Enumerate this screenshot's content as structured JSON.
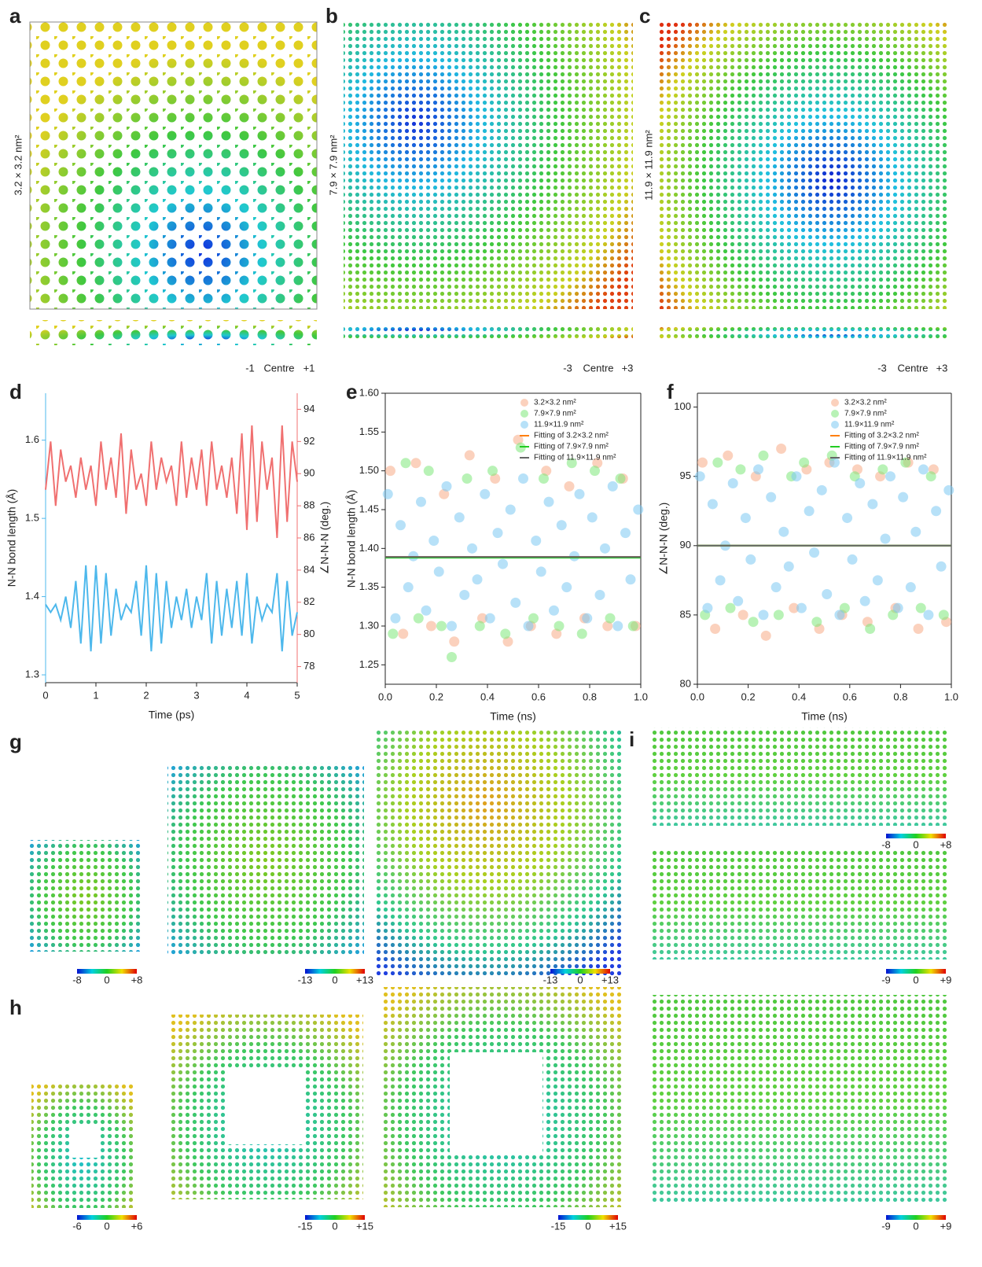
{
  "panels": {
    "a": {
      "label": "a",
      "size": "3.2 × 3.2 nm²",
      "scale": [
        "-1",
        "Centre",
        "+1"
      ]
    },
    "b": {
      "label": "b",
      "size": "7.9 × 7.9 nm²",
      "scale": [
        "-3",
        "Centre",
        "+3"
      ]
    },
    "c": {
      "label": "c",
      "size": "11.9 × 11.9 nm²",
      "scale": [
        "-3",
        "Centre",
        "+3"
      ]
    },
    "g": {
      "label": "g",
      "colorbars": [
        [
          "-8",
          "0",
          "+8"
        ],
        [
          "-13",
          "0",
          "+13"
        ],
        [
          "-13",
          "0",
          "+13"
        ]
      ]
    },
    "h": {
      "label": "h",
      "colorbars": [
        [
          "-6",
          "0",
          "+6"
        ],
        [
          "-15",
          "0",
          "+15"
        ],
        [
          "-15",
          "0",
          "+15"
        ]
      ]
    },
    "i": {
      "label": "i",
      "colorbars": [
        [
          "-8",
          "0",
          "+8"
        ],
        [
          "-9",
          "0",
          "+9"
        ],
        [
          "-9",
          "0",
          "+9"
        ]
      ]
    }
  },
  "chart_data": [
    {
      "type": "line",
      "panel": "d",
      "x_label": "Time (ps)",
      "y_label": "N-N bond length (Å)",
      "y2_label": "∠N-N-N (deg.)",
      "x": [
        0,
        0.1,
        0.2,
        0.3,
        0.4,
        0.5,
        0.6,
        0.7,
        0.8,
        0.9,
        1,
        1.1,
        1.2,
        1.3,
        1.4,
        1.5,
        1.6,
        1.7,
        1.8,
        1.9,
        2,
        2.1,
        2.2,
        2.3,
        2.4,
        2.5,
        2.6,
        2.7,
        2.8,
        2.9,
        3,
        3.1,
        3.2,
        3.3,
        3.4,
        3.5,
        3.6,
        3.7,
        3.8,
        3.9,
        4,
        4.1,
        4.2,
        4.3,
        4.4,
        4.5,
        4.6,
        4.7,
        4.8,
        4.9,
        5
      ],
      "xlim": [
        0,
        5
      ],
      "xticks": [
        0,
        1,
        2,
        3,
        4,
        5
      ],
      "ylim": [
        1.29,
        1.66
      ],
      "yticks": [
        1.3,
        1.4,
        1.5,
        1.6
      ],
      "y2lim": [
        77,
        95
      ],
      "y2ticks": [
        78,
        80,
        82,
        84,
        86,
        88,
        90,
        92,
        94
      ],
      "series": [
        {
          "color": "#4db8ec",
          "values": [
            1.39,
            1.38,
            1.39,
            1.37,
            1.4,
            1.36,
            1.42,
            1.34,
            1.44,
            1.33,
            1.44,
            1.34,
            1.43,
            1.35,
            1.41,
            1.37,
            1.39,
            1.38,
            1.42,
            1.35,
            1.44,
            1.33,
            1.43,
            1.34,
            1.42,
            1.36,
            1.4,
            1.37,
            1.41,
            1.36,
            1.4,
            1.37,
            1.43,
            1.34,
            1.42,
            1.35,
            1.41,
            1.36,
            1.42,
            1.35,
            1.43,
            1.34,
            1.4,
            1.37,
            1.39,
            1.38,
            1.43,
            1.33,
            1.42,
            1.35,
            1.38
          ]
        },
        {
          "color": "#f07070",
          "axis": "y2",
          "values": [
            89,
            92,
            88,
            91.5,
            89.5,
            90.5,
            88.5,
            91,
            89,
            90.5,
            88,
            92,
            89,
            91,
            88.5,
            92.5,
            87.5,
            91.5,
            89,
            90,
            88,
            92,
            89,
            91,
            89.5,
            90.5,
            88,
            92,
            88.5,
            91,
            89,
            91.5,
            88,
            92,
            89,
            90.5,
            88.5,
            91,
            87.5,
            92.5,
            86.5,
            93,
            87,
            92,
            89,
            91,
            86,
            93,
            87,
            92,
            89.5
          ]
        }
      ]
    },
    {
      "type": "scatter",
      "panel": "e",
      "x_label": "Time (ns)",
      "y_label": "N-N bond length (Å)",
      "legend": "upper right",
      "xlim": [
        0,
        1
      ],
      "xticks": [
        {
          "value": 0,
          "label": "0.0"
        },
        0.2,
        0.4,
        0.6,
        0.8,
        {
          "value": 1,
          "label": "1.0"
        }
      ],
      "ylim": [
        1.225,
        1.6
      ],
      "yticks": [
        1.25,
        {
          "value": 1.3,
          "label": "1.30"
        },
        1.35,
        {
          "value": 1.4,
          "label": "1.40"
        },
        1.45,
        {
          "value": 1.5,
          "label": "1.50"
        },
        1.55,
        {
          "value": 1.6,
          "label": "1.60"
        }
      ],
      "series": [
        {
          "name": "3.2×3.2 nm²",
          "color": "#f7ac86",
          "x": [
            0.02,
            0.07,
            0.12,
            0.18,
            0.23,
            0.27,
            0.33,
            0.38,
            0.43,
            0.48,
            0.52,
            0.57,
            0.63,
            0.67,
            0.72,
            0.78,
            0.83,
            0.87,
            0.93,
            0.98
          ],
          "values": [
            1.5,
            1.29,
            1.51,
            1.3,
            1.47,
            1.28,
            1.52,
            1.31,
            1.49,
            1.28,
            1.54,
            1.3,
            1.5,
            1.29,
            1.48,
            1.31,
            1.51,
            1.3,
            1.49,
            1.3
          ]
        },
        {
          "name": "7.9×7.9 nm²",
          "color": "#7de87a",
          "x": [
            0.03,
            0.08,
            0.13,
            0.17,
            0.22,
            0.26,
            0.32,
            0.37,
            0.42,
            0.47,
            0.53,
            0.58,
            0.62,
            0.68,
            0.73,
            0.77,
            0.82,
            0.88,
            0.92,
            0.97
          ],
          "values": [
            1.29,
            1.51,
            1.31,
            1.5,
            1.3,
            1.26,
            1.49,
            1.3,
            1.5,
            1.29,
            1.53,
            1.31,
            1.49,
            1.3,
            1.51,
            1.29,
            1.5,
            1.31,
            1.49,
            1.3
          ]
        },
        {
          "name": "11.9×11.9 nm²",
          "color": "#7cc8f2",
          "x": [
            0.01,
            0.04,
            0.06,
            0.09,
            0.11,
            0.14,
            0.16,
            0.19,
            0.21,
            0.24,
            0.26,
            0.29,
            0.31,
            0.34,
            0.36,
            0.39,
            0.41,
            0.44,
            0.46,
            0.49,
            0.51,
            0.54,
            0.56,
            0.59,
            0.61,
            0.64,
            0.66,
            0.69,
            0.71,
            0.74,
            0.76,
            0.79,
            0.81,
            0.84,
            0.86,
            0.89,
            0.91,
            0.94,
            0.96,
            0.99
          ],
          "values": [
            1.47,
            1.31,
            1.43,
            1.35,
            1.39,
            1.46,
            1.32,
            1.41,
            1.37,
            1.48,
            1.3,
            1.44,
            1.34,
            1.4,
            1.36,
            1.47,
            1.31,
            1.42,
            1.38,
            1.45,
            1.33,
            1.49,
            1.3,
            1.41,
            1.37,
            1.46,
            1.32,
            1.43,
            1.35,
            1.39,
            1.47,
            1.31,
            1.44,
            1.34,
            1.4,
            1.48,
            1.3,
            1.42,
            1.36,
            1.45
          ]
        },
        {
          "name": "Fitting of 3.2×3.2 nm²",
          "kind": "line",
          "color": "#ff7f0e",
          "x": [
            0,
            1
          ],
          "values": [
            1.389,
            1.389
          ]
        },
        {
          "name": "Fitting of 7.9×7.9 nm²",
          "kind": "line",
          "color": "#22cc22",
          "x": [
            0,
            1
          ],
          "values": [
            1.388,
            1.388
          ]
        },
        {
          "name": "Fitting of 11.9×11.9 nm²",
          "kind": "line",
          "color": "#666666",
          "x": [
            0,
            1
          ],
          "values": [
            1.389,
            1.389
          ]
        }
      ]
    },
    {
      "type": "scatter",
      "panel": "f",
      "x_label": "Time (ns)",
      "y_label": "∠N-N-N (deg.)",
      "legend": "upper right",
      "xlim": [
        0,
        1
      ],
      "xticks": [
        {
          "value": 0,
          "label": "0.0"
        },
        0.2,
        0.4,
        0.6,
        0.8,
        {
          "value": 1,
          "label": "1.0"
        }
      ],
      "ylim": [
        80,
        101
      ],
      "yticks": [
        80,
        85,
        90,
        95,
        100
      ],
      "series": [
        {
          "name": "3.2×3.2 nm²",
          "color": "#f7ac86",
          "x": [
            0.02,
            0.07,
            0.12,
            0.18,
            0.23,
            0.27,
            0.33,
            0.38,
            0.43,
            0.48,
            0.52,
            0.57,
            0.63,
            0.67,
            0.72,
            0.78,
            0.83,
            0.87,
            0.93,
            0.98
          ],
          "values": [
            96,
            84,
            96.5,
            85,
            95,
            83.5,
            97,
            85.5,
            95.5,
            84,
            96,
            85,
            95.5,
            84.5,
            95,
            85.5,
            96,
            84,
            95.5,
            84.5
          ]
        },
        {
          "name": "7.9×7.9 nm²",
          "color": "#7de87a",
          "x": [
            0.03,
            0.08,
            0.13,
            0.17,
            0.22,
            0.26,
            0.32,
            0.37,
            0.42,
            0.47,
            0.53,
            0.58,
            0.62,
            0.68,
            0.73,
            0.77,
            0.82,
            0.88,
            0.92,
            0.97
          ],
          "values": [
            85,
            96,
            85.5,
            95.5,
            84.5,
            96.5,
            85,
            95,
            96,
            84.5,
            96.5,
            85.5,
            95,
            84,
            95.5,
            85,
            96,
            85.5,
            95,
            85
          ]
        },
        {
          "name": "11.9×11.9 nm²",
          "color": "#7cc8f2",
          "x": [
            0.01,
            0.04,
            0.06,
            0.09,
            0.11,
            0.14,
            0.16,
            0.19,
            0.21,
            0.24,
            0.26,
            0.29,
            0.31,
            0.34,
            0.36,
            0.39,
            0.41,
            0.44,
            0.46,
            0.49,
            0.51,
            0.54,
            0.56,
            0.59,
            0.61,
            0.64,
            0.66,
            0.69,
            0.71,
            0.74,
            0.76,
            0.79,
            0.81,
            0.84,
            0.86,
            0.89,
            0.91,
            0.94,
            0.96,
            0.99
          ],
          "values": [
            95,
            85.5,
            93,
            87.5,
            90,
            94.5,
            86,
            92,
            89,
            95.5,
            85,
            93.5,
            87,
            91,
            88.5,
            95,
            85.5,
            92.5,
            89.5,
            94,
            86.5,
            96,
            85,
            92,
            89,
            94.5,
            86,
            93,
            87.5,
            90.5,
            95,
            85.5,
            93.5,
            87,
            91,
            95.5,
            85,
            92.5,
            88.5,
            94
          ]
        },
        {
          "name": "Fitting of 3.2×3.2 nm²",
          "kind": "line",
          "color": "#ff7f0e",
          "x": [
            0,
            1
          ],
          "values": [
            90,
            90
          ]
        },
        {
          "name": "Fitting of 7.9×7.9 nm²",
          "kind": "line",
          "color": "#22cc22",
          "x": [
            0,
            1
          ],
          "values": [
            90,
            90
          ]
        },
        {
          "name": "Fitting of 11.9×11.9 nm²",
          "kind": "line",
          "color": "#666666",
          "x": [
            0,
            1
          ],
          "values": [
            90,
            90
          ]
        }
      ]
    }
  ]
}
